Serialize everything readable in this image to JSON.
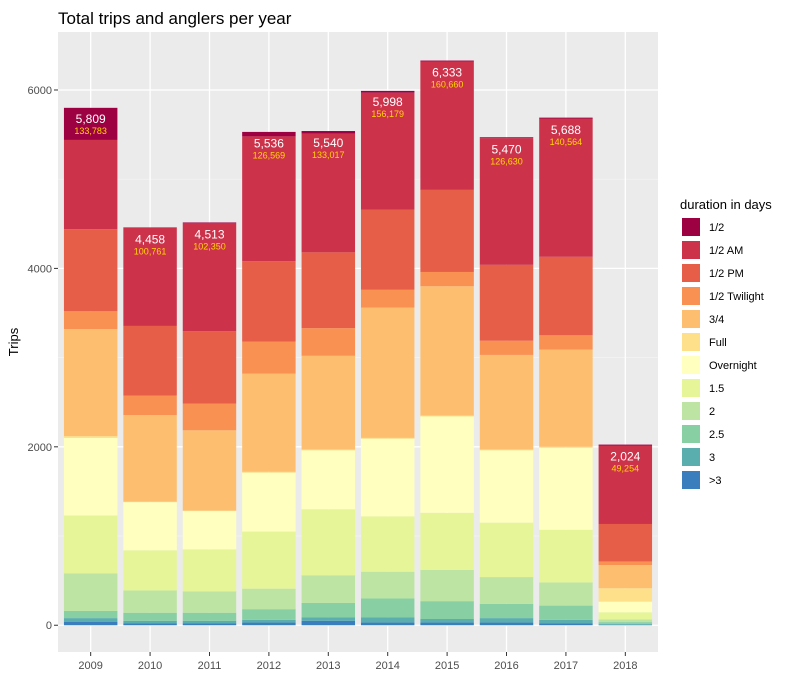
{
  "chart_data": {
    "type": "bar",
    "stacked": true,
    "title": "Total trips and anglers per year",
    "xlabel": "",
    "ylabel": "Trips",
    "ylim": [
      -300,
      6650
    ],
    "yticks": [
      0,
      2000,
      4000,
      6000
    ],
    "ytick_labels": [
      "0",
      "2000",
      "4000",
      "6000"
    ],
    "grid": true,
    "legend_position": "right",
    "legend_title": "duration in days",
    "categories": [
      "2009",
      "2010",
      "2011",
      "2012",
      "2013",
      "2014",
      "2015",
      "2016",
      "2017",
      "2018"
    ],
    "totals": [
      5809,
      4458,
      4513,
      5536,
      5540,
      5998,
      6333,
      5470,
      5688,
      2024
    ],
    "total_labels": [
      "5,809",
      "4,458",
      "4,513",
      "5,536",
      "5,540",
      "5,998",
      "6,333",
      "5,470",
      "5,688",
      "2,024"
    ],
    "anglers_labels": [
      "133,783",
      "100,761",
      "102,350",
      "126,569",
      "133,017",
      "156,179",
      "160,660",
      "126,630",
      "140,564",
      "49,254"
    ],
    "series": [
      {
        "name": ">3",
        "color": "#3b7ebd",
        "values": [
          40,
          20,
          20,
          30,
          50,
          30,
          30,
          30,
          20,
          5
        ]
      },
      {
        "name": "3",
        "color": "#5aaeae",
        "values": [
          40,
          30,
          30,
          30,
          40,
          60,
          40,
          50,
          40,
          10
        ]
      },
      {
        "name": "2.5",
        "color": "#88cfa4",
        "values": [
          80,
          90,
          90,
          120,
          160,
          210,
          200,
          160,
          160,
          20
        ]
      },
      {
        "name": "2",
        "color": "#bde4a3",
        "values": [
          420,
          250,
          240,
          230,
          310,
          300,
          350,
          300,
          260,
          30
        ]
      },
      {
        "name": "1.5",
        "color": "#e6f598",
        "values": [
          650,
          450,
          470,
          640,
          740,
          620,
          640,
          610,
          590,
          80
        ]
      },
      {
        "name": "Overnight",
        "color": "#ffffbf",
        "values": [
          870,
          540,
          430,
          660,
          660,
          870,
          1080,
          810,
          920,
          120
        ]
      },
      {
        "name": "Full",
        "color": "#fee08b",
        "values": [
          20,
          5,
          5,
          10,
          10,
          10,
          10,
          10,
          10,
          150
        ]
      },
      {
        "name": "3/4",
        "color": "#fdbf6f",
        "values": [
          1200,
          970,
          900,
          1100,
          1050,
          1460,
          1450,
          1060,
          1090,
          260
        ]
      },
      {
        "name": "1/2 Twilight",
        "color": "#f99153",
        "values": [
          200,
          220,
          300,
          360,
          310,
          200,
          160,
          160,
          160,
          40
        ]
      },
      {
        "name": "1/2 PM",
        "color": "#e65e47",
        "values": [
          920,
          780,
          810,
          900,
          850,
          900,
          920,
          850,
          880,
          420
        ]
      },
      {
        "name": "1/2 AM",
        "color": "#cc334b",
        "values": [
          1000,
          1100,
          1210,
          1400,
          1330,
          1310,
          1440,
          1420,
          1550,
          880
        ]
      },
      {
        "name": "1/2",
        "color": "#9e0142",
        "values": [
          360,
          5,
          10,
          50,
          30,
          20,
          10,
          10,
          10,
          10
        ]
      }
    ]
  }
}
